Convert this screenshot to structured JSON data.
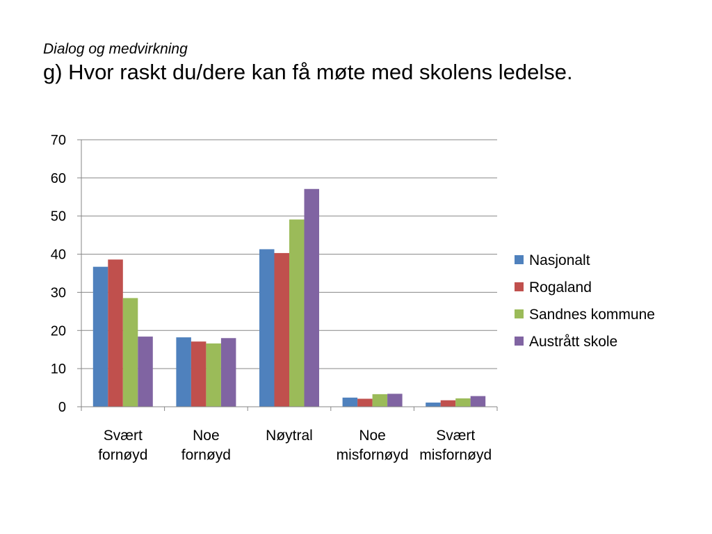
{
  "slide": {
    "subtitle": "Dialog og medvirkning",
    "title": "g) Hvor raskt du/dere kan få møte med skolens ledelse."
  },
  "chart_data": {
    "type": "bar",
    "categories": [
      [
        "Svært",
        "fornøyd"
      ],
      [
        "Noe",
        "fornøyd"
      ],
      [
        "Nøytral"
      ],
      [
        "Noe",
        "misfornøyd"
      ],
      [
        "Svært",
        "misfornøyd"
      ]
    ],
    "series": [
      {
        "name": "Nasjonalt",
        "color": "#4f81bd",
        "values": [
          36.7,
          18.2,
          41.3,
          2.4,
          1.1
        ]
      },
      {
        "name": "Rogaland",
        "color": "#c0504d",
        "values": [
          38.6,
          17.1,
          40.3,
          2.1,
          1.7
        ]
      },
      {
        "name": "Sandnes kommune",
        "color": "#9bbb59",
        "values": [
          28.5,
          16.6,
          49.1,
          3.3,
          2.2
        ]
      },
      {
        "name": "Austrått skole",
        "color": "#8064a2",
        "values": [
          18.4,
          18.0,
          57.1,
          3.4,
          2.8
        ]
      }
    ],
    "ylim": [
      0,
      70
    ],
    "yticks": [
      0,
      10,
      20,
      30,
      40,
      50,
      60,
      70
    ],
    "grid": true,
    "legend": "right"
  }
}
